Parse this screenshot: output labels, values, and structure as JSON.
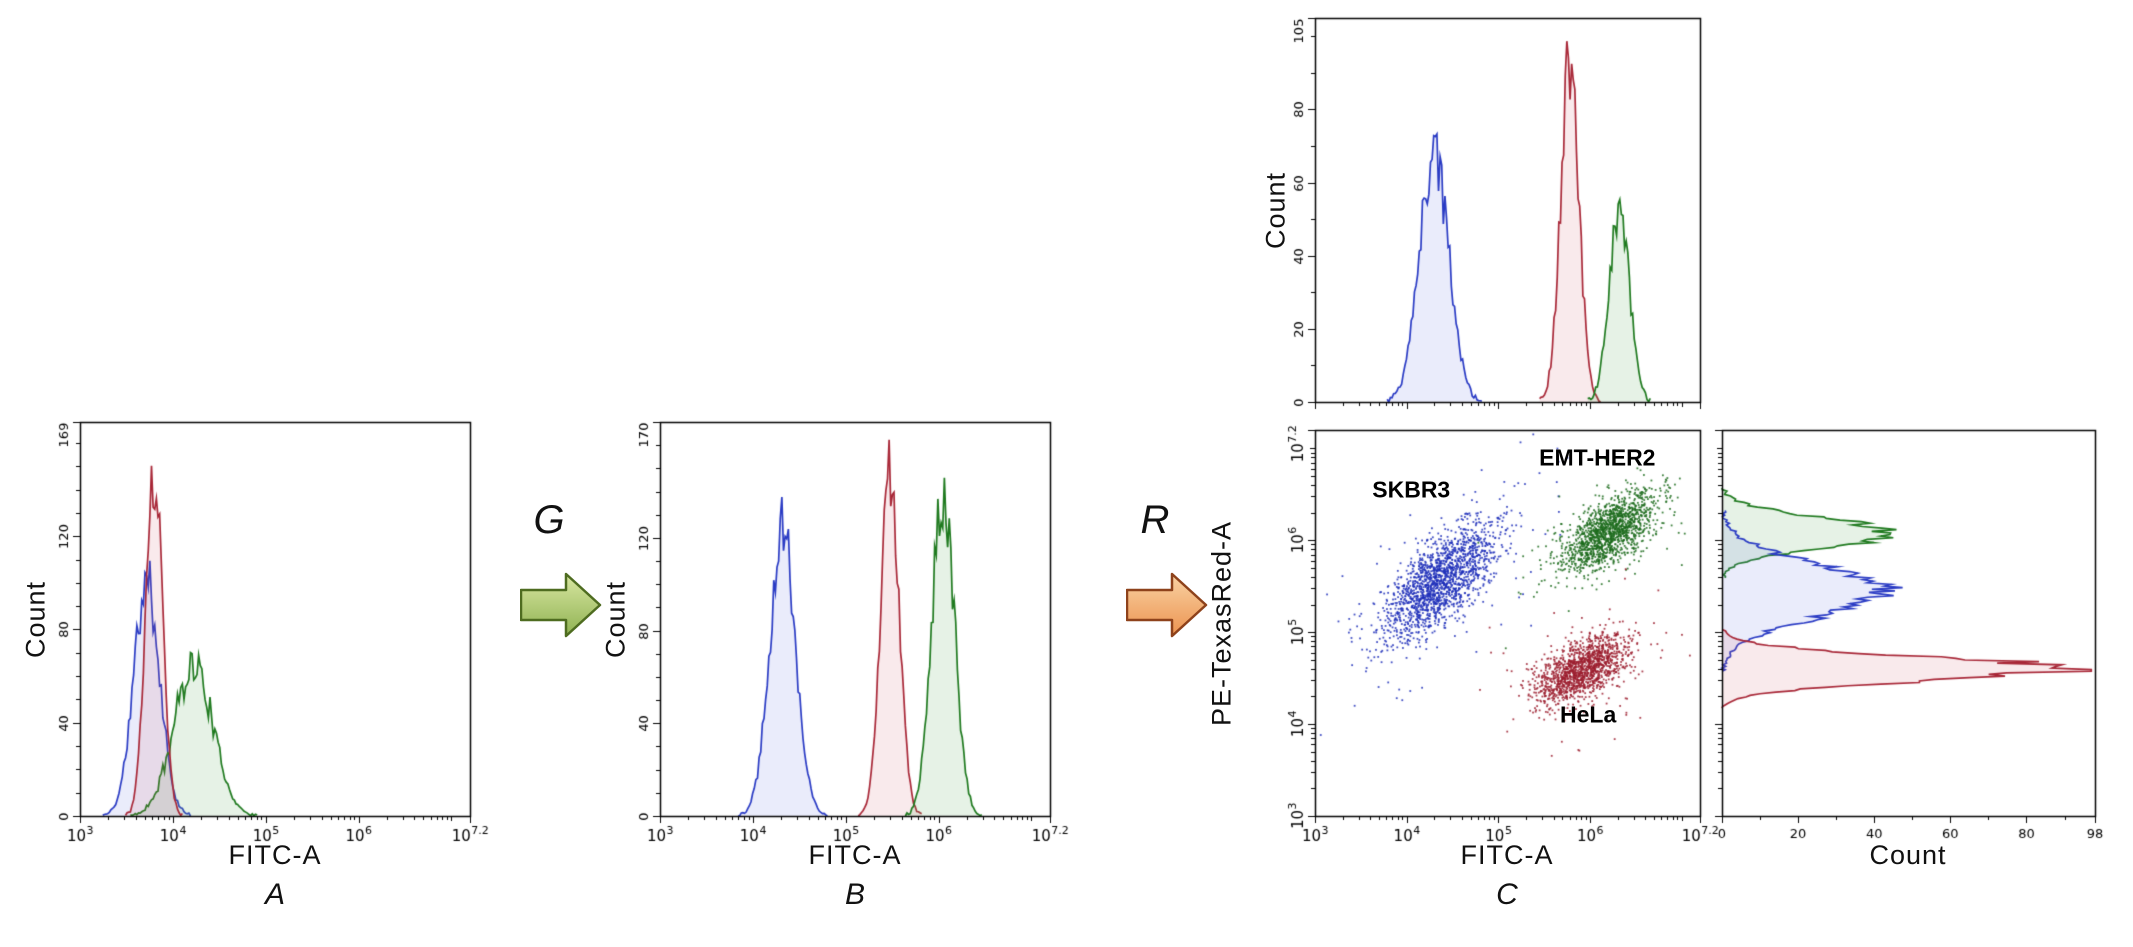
{
  "figure": {
    "panels": [
      {
        "letter": "A"
      },
      {
        "letter": "B"
      },
      {
        "letter": "C"
      }
    ]
  },
  "arrows": {
    "g": {
      "label": "G",
      "fill_light": "#d9e7a2",
      "fill_dark": "#8fb252",
      "outline": "#4e6c20"
    },
    "r": {
      "label": "R",
      "fill_light": "#f9d3a4",
      "fill_dark": "#ec9350",
      "outline": "#8e421b"
    }
  },
  "palette": {
    "blue": {
      "stroke": "#2a3bc4",
      "fill": "rgba(90,105,225,0.13)",
      "point": "#1f2fba"
    },
    "red": {
      "stroke": "#a82737",
      "fill": "rgba(205,95,105,0.13)",
      "point": "#9c1e2f"
    },
    "green": {
      "stroke": "#1f7a1f",
      "fill": "rgba(100,175,100,0.16)",
      "point": "#1c6b1c"
    }
  },
  "chart_data": [
    {
      "id": "panel-A-histogram",
      "type": "area",
      "subtype": "flow-cytometry-histogram",
      "panel_letter": "A",
      "xlabel": "FITC-A",
      "ylabel": "Count",
      "xscale": "log10",
      "xlim_log10": [
        3,
        7.2
      ],
      "x_ticks": [
        {
          "log10": 3,
          "label_exp": "3"
        },
        {
          "log10": 4,
          "label_exp": "4"
        },
        {
          "log10": 5,
          "label_exp": "5"
        },
        {
          "log10": 6,
          "label_exp": "6"
        },
        {
          "log10": 7.2,
          "label_exp": "7.2"
        }
      ],
      "x_tick_labels_visible": true,
      "ylim": [
        0,
        169
      ],
      "y_major_tick_step": 40,
      "y_minor_tick_step": 10,
      "y_axis_top_label": "169",
      "series": [
        {
          "name": "SKBR3",
          "color": "blue",
          "peak_log10_x": 3.72,
          "sigma_log10": 0.14,
          "peak_count": 100
        },
        {
          "name": "EMT-HER2",
          "color": "green",
          "peak_log10_x": 4.22,
          "sigma_log10": 0.21,
          "peak_count": 65
        },
        {
          "name": "HeLa",
          "color": "red",
          "peak_log10_x": 3.8,
          "sigma_log10": 0.09,
          "peak_count": 150
        }
      ]
    },
    {
      "id": "panel-B-histogram",
      "type": "area",
      "subtype": "flow-cytometry-histogram",
      "panel_letter": "B",
      "xlabel": "FITC-A",
      "ylabel": "Count",
      "xscale": "log10",
      "xlim_log10": [
        3,
        7.2
      ],
      "x_ticks": [
        {
          "log10": 3,
          "label_exp": "3"
        },
        {
          "log10": 4,
          "label_exp": "4"
        },
        {
          "log10": 5,
          "label_exp": "5"
        },
        {
          "log10": 6,
          "label_exp": "6"
        },
        {
          "log10": 7.2,
          "label_exp": "7.2"
        }
      ],
      "x_tick_labels_visible": true,
      "ylim": [
        0,
        170
      ],
      "y_major_tick_step": 40,
      "y_minor_tick_step": 10,
      "y_axis_top_label": "170",
      "series": [
        {
          "name": "SKBR3",
          "color": "blue",
          "peak_log10_x": 4.32,
          "sigma_log10": 0.14,
          "peak_count": 125
        },
        {
          "name": "HeLa",
          "color": "red",
          "peak_log10_x": 5.48,
          "sigma_log10": 0.1,
          "peak_count": 148
        },
        {
          "name": "EMT-HER2",
          "color": "green",
          "peak_log10_x": 6.05,
          "sigma_log10": 0.12,
          "peak_count": 143
        }
      ]
    },
    {
      "id": "panel-C-top-histogram",
      "type": "area",
      "subtype": "flow-cytometry-histogram",
      "xlabel": "",
      "ylabel": "Count",
      "xscale": "log10",
      "xlim_log10": [
        3,
        7.2
      ],
      "x_ticks": [
        {
          "log10": 3
        },
        {
          "log10": 4
        },
        {
          "log10": 5
        },
        {
          "log10": 6
        },
        {
          "log10": 7.2
        }
      ],
      "x_tick_labels_visible": false,
      "ylim": [
        0,
        105
      ],
      "y_major_tick_step": 20,
      "y_minor_tick_step": 10,
      "y_axis_top_label": "105",
      "series": [
        {
          "name": "SKBR3",
          "color": "blue",
          "peak_log10_x": 4.3,
          "sigma_log10": 0.16,
          "peak_count": 68
        },
        {
          "name": "HeLa",
          "color": "red",
          "peak_log10_x": 5.78,
          "sigma_log10": 0.1,
          "peak_count": 93
        },
        {
          "name": "EMT-HER2",
          "color": "green",
          "peak_log10_x": 6.32,
          "sigma_log10": 0.11,
          "peak_count": 53
        }
      ]
    },
    {
      "id": "panel-C-scatter",
      "type": "scatter",
      "subtype": "flow-cytometry-dot-plot",
      "panel_letter": "C",
      "xlabel": "FITC-A",
      "ylabel": "PE-TexasRed-A",
      "xscale": "log10",
      "yscale": "log10",
      "xlim_log10": [
        3,
        7.2
      ],
      "ylim_log10": [
        3,
        7.2
      ],
      "x_ticks": [
        {
          "log10": 3,
          "label_exp": "3"
        },
        {
          "log10": 4,
          "label_exp": "4"
        },
        {
          "log10": 5,
          "label_exp": "5"
        },
        {
          "log10": 6,
          "label_exp": "6"
        },
        {
          "log10": 7.2,
          "label_exp": "7.2"
        }
      ],
      "y_ticks": [
        {
          "log10": 3,
          "label_exp": "3"
        },
        {
          "log10": 4,
          "label_exp": "4"
        },
        {
          "log10": 5,
          "label_exp": "5"
        },
        {
          "log10": 6,
          "label_exp": "6"
        },
        {
          "log10": 7.2,
          "label_exp": "7.2"
        }
      ],
      "clusters": [
        {
          "name": "SKBR3",
          "color": "blue",
          "mean_log10": [
            4.35,
            5.55
          ],
          "sd_major": 0.4,
          "sd_minor": 0.17,
          "angle_deg": 45,
          "n": 1800,
          "outlier_frac": 0.07
        },
        {
          "name": "EMT-HER2",
          "color": "green",
          "mean_log10": [
            6.2,
            6.1
          ],
          "sd_major": 0.3,
          "sd_minor": 0.15,
          "angle_deg": 35,
          "n": 1500,
          "outlier_frac": 0.04
        },
        {
          "name": "HeLa",
          "color": "red",
          "mean_log10": [
            5.9,
            4.6
          ],
          "sd_major": 0.28,
          "sd_minor": 0.14,
          "angle_deg": 30,
          "n": 1500,
          "outlier_frac": 0.04
        }
      ],
      "annotations": [
        {
          "text": "SKBR3",
          "pos_log10": [
            4.05,
            6.55
          ]
        },
        {
          "text": "EMT-HER2",
          "pos_log10": [
            6.08,
            6.9
          ]
        },
        {
          "text": "HeLa",
          "pos_log10": [
            5.98,
            4.1
          ]
        }
      ]
    },
    {
      "id": "panel-C-right-histogram",
      "type": "area",
      "subtype": "flow-cytometry-histogram",
      "orientation": "horizontal",
      "xlabel": "Count",
      "ylabel": "",
      "yscale": "log10",
      "ylim_log10": [
        3,
        7.2
      ],
      "y_ticks": [
        {
          "log10": 3
        },
        {
          "log10": 4
        },
        {
          "log10": 5
        },
        {
          "log10": 6
        },
        {
          "log10": 7.2
        }
      ],
      "xlim": [
        0,
        98
      ],
      "x_major_tick_step": 20,
      "x_minor_tick_step": 10,
      "x_axis_end_label": "98",
      "series": [
        {
          "name": "EMT-HER2",
          "color": "green",
          "peak_log10_y": 6.08,
          "sigma_log10": 0.16,
          "peak_count": 45
        },
        {
          "name": "SKBR3",
          "color": "blue",
          "peak_log10_y": 5.45,
          "sigma_log10": 0.28,
          "peak_count": 43
        },
        {
          "name": "HeLa",
          "color": "red",
          "peak_log10_y": 4.6,
          "sigma_log10": 0.13,
          "peak_count": 90
        }
      ]
    }
  ]
}
